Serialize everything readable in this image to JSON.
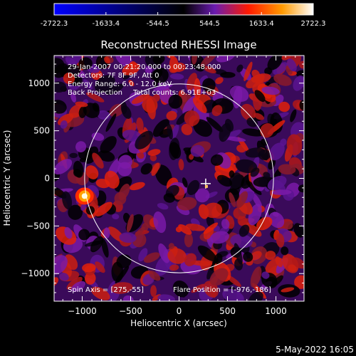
{
  "colorbar": {
    "min_label": "-2722.3",
    "tick_labels": [
      "-2722.3",
      "-1633.4",
      "-544.5",
      "544.5",
      "1633.4",
      "2722.3"
    ],
    "stops": [
      "#0000ff",
      "#000000",
      "#6a1bb0",
      "#ff1a00",
      "#ff9a00",
      "#ffffff"
    ]
  },
  "chart_data": {
    "type": "heatmap",
    "title": "Reconstructed RHESSI Image",
    "xlabel": "Heliocentric X (arcsec)",
    "ylabel": "Heliocentric Y (arcsec)",
    "xlim": [
      -1290,
      1290
    ],
    "ylim": [
      -1290,
      1290
    ],
    "xticks": [
      -1000,
      -500,
      0,
      500,
      1000
    ],
    "yticks": [
      -1000,
      -500,
      0,
      500,
      1000
    ],
    "xtick_labels": [
      "−1000",
      "−500",
      "0",
      "500",
      "1000"
    ],
    "ytick_labels": [
      "−1000",
      "−500",
      "0",
      "500",
      "1000"
    ],
    "value_range": [
      -2722.3,
      2722.3
    ],
    "solar_limb_radius": 975,
    "bright_source": {
      "x": -976,
      "y": -186
    },
    "marker_point": {
      "x": 275,
      "y": -55
    },
    "annotations": {
      "line1": "29-Jan-2007 00:21:20.000 to 00:23:48.000",
      "line2": "Detectors: 7F 8F 9F, Att 0",
      "line3": "Energy Range: 6.0 - 12.0 keV",
      "line4a": "Back Projection",
      "line4b": "Total counts: 6.91E+03",
      "spin_axis": "Spin Axis = [275,-55]",
      "flare_position": "Flare Position = [-976,-186]"
    }
  },
  "footer": {
    "date": "5-May-2022 16:05"
  }
}
